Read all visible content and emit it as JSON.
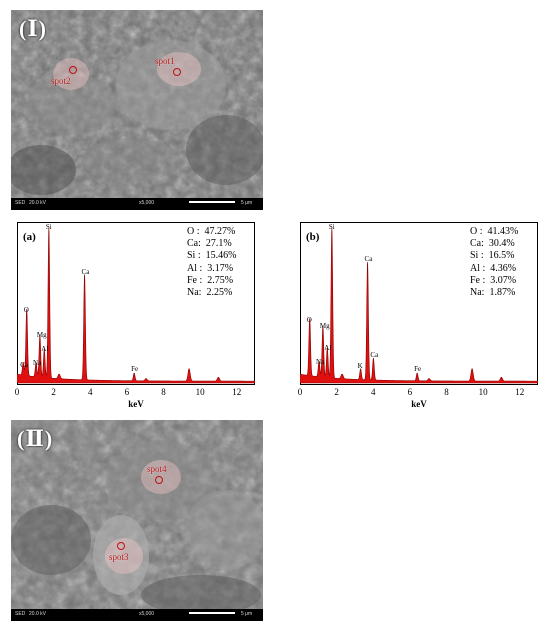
{
  "sem_top": {
    "panel_label": "(Ⅰ)",
    "spots": [
      {
        "label": "spot1"
      },
      {
        "label": "spot2"
      }
    ],
    "info_bar": {
      "detector": "SED",
      "voltage": "20.0 kV",
      "magnification": "x5,000",
      "scale": "5 μm"
    }
  },
  "sem_bottom": {
    "panel_label": "(Ⅱ)",
    "spots": [
      {
        "label": "spot4"
      },
      {
        "label": "spot3"
      }
    ],
    "info_bar": {
      "detector": "SED",
      "voltage": "20.0 kV",
      "magnification": "x5,000",
      "scale": "5 μm"
    }
  },
  "chart_data": [
    {
      "type": "area",
      "panel": "(a)",
      "xlabel": "keV",
      "ylabel": "",
      "xlim": [
        0,
        13
      ],
      "xticks": [
        "0",
        "2",
        "4",
        "6",
        "8",
        "10",
        "12"
      ],
      "peaks": [
        {
          "element": "Ca",
          "keV": 0.34,
          "height": 0.08
        },
        {
          "element": "O",
          "keV": 0.53,
          "height": 0.43
        },
        {
          "element": "Na",
          "keV": 1.04,
          "height": 0.09
        },
        {
          "element": "Mg",
          "keV": 1.25,
          "height": 0.27
        },
        {
          "element": "Al",
          "keV": 1.49,
          "height": 0.18
        },
        {
          "element": "Si",
          "keV": 1.74,
          "height": 0.97
        },
        {
          "element": "Ca",
          "keV": 3.69,
          "height": 0.68
        },
        {
          "element": "Fe",
          "keV": 6.4,
          "height": 0.05
        }
      ],
      "composition": [
        {
          "element": "O",
          "value": "47.27%"
        },
        {
          "element": "Ca",
          "value": "27.1%"
        },
        {
          "element": "Si",
          "value": "15.46%"
        },
        {
          "element": "Al",
          "value": "3.17%"
        },
        {
          "element": "Fe",
          "value": "2.75%"
        },
        {
          "element": "Na",
          "value": "2.25%"
        }
      ]
    },
    {
      "type": "area",
      "panel": "(b)",
      "xlabel": "keV",
      "ylabel": "",
      "xlim": [
        0,
        13
      ],
      "xticks": [
        "0",
        "2",
        "4",
        "6",
        "8",
        "10",
        "12"
      ],
      "peaks": [
        {
          "element": "O",
          "keV": 0.53,
          "height": 0.37
        },
        {
          "element": "Na",
          "keV": 1.04,
          "height": 0.1
        },
        {
          "element": "Mg",
          "keV": 1.25,
          "height": 0.33
        },
        {
          "element": "Al",
          "keV": 1.49,
          "height": 0.19
        },
        {
          "element": "Si",
          "keV": 1.74,
          "height": 0.97
        },
        {
          "element": "K",
          "keV": 3.31,
          "height": 0.07
        },
        {
          "element": "Ca",
          "keV": 3.69,
          "height": 0.76
        },
        {
          "element": "Ca",
          "keV": 4.01,
          "height": 0.14
        },
        {
          "element": "Fe",
          "keV": 6.4,
          "height": 0.05
        }
      ],
      "composition": [
        {
          "element": "O",
          "value": "41.43%"
        },
        {
          "element": "Ca",
          "value": "30.4%"
        },
        {
          "element": "Si",
          "value": "16.5%"
        },
        {
          "element": "Al",
          "value": "4.36%"
        },
        {
          "element": "Fe",
          "value": "3.07%"
        },
        {
          "element": "Na",
          "value": "1.87%"
        }
      ]
    }
  ]
}
